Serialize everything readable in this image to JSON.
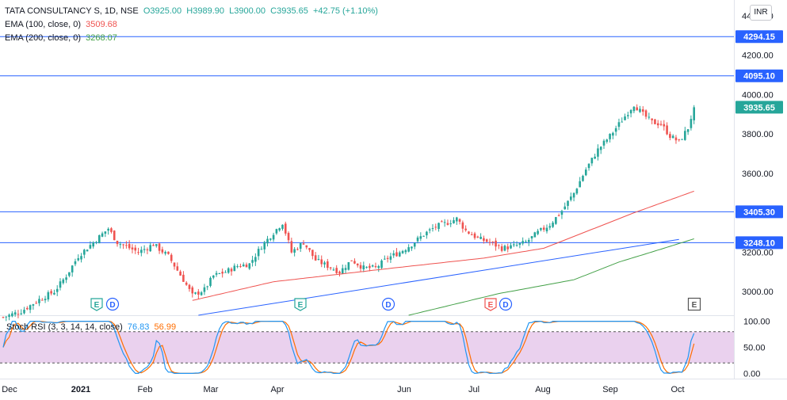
{
  "legend": {
    "symbol": "TATA CONSULTANCY S, 1D, NSE",
    "open": "O3925.00",
    "high": "H3989.90",
    "low": "L3900.00",
    "close": "C3935.65",
    "change": "+42.75 (+1.10%)",
    "ema100_label": "EMA (100, close, 0)",
    "ema100_value": "3509.68",
    "ema200_label": "EMA (200, close, 0)",
    "ema200_value": "3268.07"
  },
  "currency_button": "INR",
  "stoch": {
    "label": "Stoch RSI (3, 3, 14, 14, close)",
    "k_value": "76.83",
    "d_value": "56.99"
  },
  "colors": {
    "up": "#26a69a",
    "down": "#ef5350",
    "ema100": "#ef5350",
    "ema200": "#43a047",
    "hline": "#2962ff",
    "trendline": "#2962ff",
    "stoch_k": "#2196f3",
    "stoch_d": "#ff6d00",
    "stoch_band": "#e1bee7"
  },
  "chart_data": {
    "type": "candlestick",
    "price_axis": {
      "ticks": [
        3000,
        3200,
        3400,
        3600,
        3800,
        4000,
        4200,
        4400
      ],
      "tick_labels": [
        "3000.00",
        "3200.00",
        "3400.00",
        "3600.00",
        "3800.00",
        "4000.00",
        "4200.00",
        "4400.00"
      ],
      "range": [
        2880,
        4480
      ]
    },
    "horizontal_levels": [
      {
        "value": 4294.15,
        "label": "4294.15"
      },
      {
        "value": 4095.1,
        "label": "4095.10"
      },
      {
        "value": 3405.3,
        "label": "3405.30"
      },
      {
        "value": 3248.1,
        "label": "3248.10"
      }
    ],
    "last_price": {
      "value": 3935.65,
      "label": "3935.65"
    },
    "time_axis": [
      "Dec",
      "2021",
      "Feb",
      "Mar",
      "Apr",
      "Jun",
      "Jul",
      "Aug",
      "Sep",
      "Oct"
    ],
    "event_markers": [
      {
        "type": "E",
        "style": "earnings-green"
      },
      {
        "type": "D",
        "style": "dividend-blue"
      },
      {
        "type": "E",
        "style": "earnings-green"
      },
      {
        "type": "D",
        "style": "dividend-blue"
      },
      {
        "type": "E",
        "style": "earnings-red"
      },
      {
        "type": "D",
        "style": "dividend-blue"
      },
      {
        "type": "E",
        "style": "earnings-future"
      }
    ],
    "price_anchors": [
      {
        "bar": 0,
        "price": 2870
      },
      {
        "bar": 6,
        "price": 2900
      },
      {
        "bar": 12,
        "price": 2960
      },
      {
        "bar": 17,
        "price": 3000
      },
      {
        "bar": 21,
        "price": 3080
      },
      {
        "bar": 25,
        "price": 3180
      },
      {
        "bar": 30,
        "price": 3250
      },
      {
        "bar": 35,
        "price": 3320
      },
      {
        "bar": 38,
        "price": 3250
      },
      {
        "bar": 45,
        "price": 3200
      },
      {
        "bar": 50,
        "price": 3240
      },
      {
        "bar": 55,
        "price": 3180
      },
      {
        "bar": 60,
        "price": 3060
      },
      {
        "bar": 63,
        "price": 2980
      },
      {
        "bar": 67,
        "price": 3010
      },
      {
        "bar": 70,
        "price": 3080
      },
      {
        "bar": 74,
        "price": 3100
      },
      {
        "bar": 78,
        "price": 3130
      },
      {
        "bar": 82,
        "price": 3140
      },
      {
        "bar": 86,
        "price": 3230
      },
      {
        "bar": 90,
        "price": 3300
      },
      {
        "bar": 93,
        "price": 3350
      },
      {
        "bar": 96,
        "price": 3200
      },
      {
        "bar": 100,
        "price": 3250
      },
      {
        "bar": 104,
        "price": 3160
      },
      {
        "bar": 108,
        "price": 3130
      },
      {
        "bar": 112,
        "price": 3100
      },
      {
        "bar": 116,
        "price": 3160
      },
      {
        "bar": 120,
        "price": 3120
      },
      {
        "bar": 124,
        "price": 3120
      },
      {
        "bar": 128,
        "price": 3170
      },
      {
        "bar": 132,
        "price": 3200
      },
      {
        "bar": 136,
        "price": 3240
      },
      {
        "bar": 140,
        "price": 3290
      },
      {
        "bar": 144,
        "price": 3330
      },
      {
        "bar": 148,
        "price": 3350
      },
      {
        "bar": 151,
        "price": 3370
      },
      {
        "bar": 154,
        "price": 3310
      },
      {
        "bar": 158,
        "price": 3270
      },
      {
        "bar": 162,
        "price": 3250
      },
      {
        "bar": 166,
        "price": 3220
      },
      {
        "bar": 170,
        "price": 3230
      },
      {
        "bar": 174,
        "price": 3250
      },
      {
        "bar": 178,
        "price": 3300
      },
      {
        "bar": 182,
        "price": 3340
      },
      {
        "bar": 186,
        "price": 3410
      },
      {
        "bar": 190,
        "price": 3500
      },
      {
        "bar": 194,
        "price": 3620
      },
      {
        "bar": 198,
        "price": 3720
      },
      {
        "bar": 202,
        "price": 3790
      },
      {
        "bar": 206,
        "price": 3870
      },
      {
        "bar": 210,
        "price": 3950
      },
      {
        "bar": 213,
        "price": 3900
      },
      {
        "bar": 216,
        "price": 3860
      },
      {
        "bar": 219,
        "price": 3850
      },
      {
        "bar": 222,
        "price": 3790
      },
      {
        "bar": 225,
        "price": 3760
      },
      {
        "bar": 228,
        "price": 3830
      },
      {
        "bar": 230,
        "price": 3935.65
      }
    ],
    "ema100_anchors": [
      {
        "bar": 63,
        "price": 2955
      },
      {
        "bar": 90,
        "price": 3050
      },
      {
        "bar": 130,
        "price": 3120
      },
      {
        "bar": 160,
        "price": 3170
      },
      {
        "bar": 180,
        "price": 3220
      },
      {
        "bar": 195,
        "price": 3310
      },
      {
        "bar": 210,
        "price": 3400
      },
      {
        "bar": 230,
        "price": 3509.68
      }
    ],
    "ema200_anchors": [
      {
        "bar": 135,
        "price": 2880
      },
      {
        "bar": 165,
        "price": 2990
      },
      {
        "bar": 190,
        "price": 3060
      },
      {
        "bar": 205,
        "price": 3150
      },
      {
        "bar": 220,
        "price": 3220
      },
      {
        "bar": 230,
        "price": 3268.07
      }
    ],
    "trendline": [
      {
        "bar": 65,
        "price": 2880
      },
      {
        "bar": 225,
        "price": 3265
      }
    ],
    "stoch_axis": {
      "ticks": [
        0,
        50,
        100
      ],
      "tick_labels": [
        "0.00",
        "50.00",
        "100.00"
      ],
      "band": [
        20,
        80
      ],
      "range": [
        -10,
        110
      ]
    },
    "stoch_k_last": 76.83,
    "stoch_d_last": 56.99
  }
}
